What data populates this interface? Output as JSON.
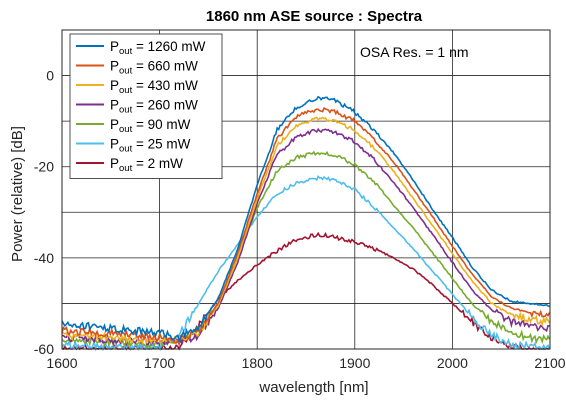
{
  "chart_data": {
    "type": "line",
    "title": "1860 nm ASE source : Spectra",
    "xlabel": "wavelength [nm]",
    "ylabel": "Power (relative) [dB]",
    "xlim": [
      1600,
      2100
    ],
    "ylim": [
      -60,
      10
    ],
    "xticks": [
      1600,
      1700,
      1800,
      1900,
      2000,
      2100
    ],
    "yticks": [
      0,
      -20,
      -40,
      -60
    ],
    "grid": true,
    "legend_position": "top-left",
    "annotation": "OSA Res. = 1 nm",
    "series_label_prefix": "P",
    "series_label_subscript": "out",
    "series": [
      {
        "name": "Pout = 1260 mW",
        "value": "= 1260 mW",
        "color": "#0072BD",
        "x": [
          1600,
          1650,
          1700,
          1720,
          1740,
          1760,
          1780,
          1800,
          1820,
          1840,
          1860,
          1870,
          1880,
          1900,
          1920,
          1940,
          1960,
          1980,
          2000,
          2020,
          2040,
          2060,
          2080,
          2100
        ],
        "y": [
          -54.5,
          -55.5,
          -56.5,
          -57.5,
          -55,
          -49,
          -38,
          -24,
          -12,
          -7,
          -5,
          -5,
          -5.5,
          -8,
          -12,
          -17,
          -23,
          -29.5,
          -35.5,
          -42,
          -47,
          -49.5,
          -50,
          -50.5
        ]
      },
      {
        "name": "Pout = 660 mW",
        "value": "= 660 mW",
        "color": "#D95319",
        "x": [
          1600,
          1650,
          1700,
          1720,
          1740,
          1760,
          1780,
          1800,
          1820,
          1840,
          1860,
          1870,
          1880,
          1900,
          1920,
          1940,
          1960,
          1980,
          2000,
          2020,
          2040,
          2060,
          2080,
          2100
        ],
        "y": [
          -56,
          -56.5,
          -57.5,
          -58,
          -56,
          -50,
          -39,
          -26,
          -14,
          -9,
          -7.5,
          -7.5,
          -8,
          -10,
          -14,
          -19,
          -25,
          -31,
          -37.5,
          -43.5,
          -48.5,
          -51,
          -52,
          -52.5
        ]
      },
      {
        "name": "Pout = 430 mW",
        "value": "= 430 mW",
        "color": "#EDB120",
        "x": [
          1600,
          1650,
          1700,
          1720,
          1740,
          1760,
          1780,
          1800,
          1820,
          1840,
          1860,
          1870,
          1880,
          1900,
          1920,
          1940,
          1960,
          1980,
          2000,
          2020,
          2040,
          2060,
          2080,
          2100
        ],
        "y": [
          -57,
          -57.5,
          -58,
          -58,
          -56.5,
          -50.5,
          -40,
          -27,
          -15.5,
          -11,
          -9.5,
          -9.5,
          -10,
          -12,
          -16,
          -21,
          -27,
          -33,
          -39,
          -45,
          -50,
          -52.5,
          -53.5,
          -54
        ]
      },
      {
        "name": "Pout = 260 mW",
        "value": "= 260 mW",
        "color": "#7E2F8E",
        "x": [
          1600,
          1650,
          1700,
          1720,
          1740,
          1760,
          1780,
          1800,
          1820,
          1840,
          1860,
          1870,
          1880,
          1900,
          1920,
          1940,
          1960,
          1980,
          2000,
          2020,
          2040,
          2060,
          2080,
          2100
        ],
        "y": [
          -57.5,
          -58,
          -58.5,
          -58.5,
          -57,
          -51,
          -41,
          -28,
          -17.5,
          -13.5,
          -12,
          -12,
          -12.5,
          -14.5,
          -18.5,
          -23.5,
          -29,
          -35,
          -41,
          -47,
          -51.5,
          -54,
          -55,
          -55.5
        ]
      },
      {
        "name": "Pout = 90 mW",
        "value": "= 90 mW",
        "color": "#77AC30",
        "x": [
          1600,
          1650,
          1700,
          1720,
          1740,
          1760,
          1780,
          1800,
          1820,
          1840,
          1860,
          1870,
          1880,
          1900,
          1920,
          1940,
          1960,
          1980,
          2000,
          2020,
          2040,
          2060,
          2080,
          2100
        ],
        "y": [
          -58,
          -58.5,
          -59,
          -58.5,
          -56,
          -50,
          -40,
          -29,
          -21,
          -18,
          -17,
          -17,
          -17.5,
          -19.5,
          -23.5,
          -28.5,
          -33.5,
          -39,
          -44.5,
          -50,
          -54,
          -56.5,
          -57.5,
          -58
        ]
      },
      {
        "name": "Pout = 25 mW",
        "value": "= 25 mW",
        "color": "#4DBEEE",
        "x": [
          1600,
          1650,
          1700,
          1720,
          1740,
          1760,
          1780,
          1800,
          1820,
          1840,
          1860,
          1870,
          1880,
          1900,
          1920,
          1940,
          1960,
          1980,
          2000,
          2020,
          2040,
          2060,
          2080,
          2100
        ],
        "y": [
          -59,
          -59.5,
          -59.5,
          -57,
          -50,
          -43,
          -37,
          -31,
          -26,
          -23.5,
          -22.5,
          -22.5,
          -23,
          -25,
          -29,
          -33.5,
          -38,
          -43,
          -48,
          -53,
          -57,
          -59,
          -59.5,
          -60
        ]
      },
      {
        "name": "Pout = 2 mW",
        "value": "= 2 mW",
        "color": "#A2142F",
        "x": [
          1600,
          1650,
          1700,
          1720,
          1740,
          1760,
          1780,
          1800,
          1820,
          1840,
          1860,
          1870,
          1880,
          1900,
          1920,
          1940,
          1960,
          1980,
          2000,
          2020,
          2040,
          2060,
          2080,
          2100
        ],
        "y": [
          -60,
          -60,
          -60,
          -59.5,
          -55,
          -49,
          -45,
          -41.5,
          -38.5,
          -36,
          -35,
          -35,
          -35.5,
          -36.5,
          -38,
          -40,
          -42.5,
          -46,
          -50,
          -54,
          -57.5,
          -59.5,
          -60,
          -60
        ]
      }
    ]
  }
}
